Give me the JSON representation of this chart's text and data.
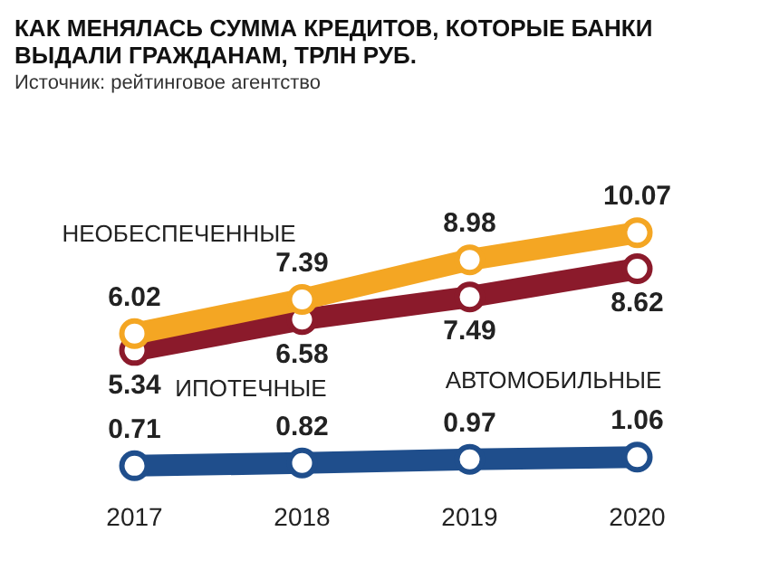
{
  "chart_data": {
    "type": "line",
    "title": "КАК МЕНЯЛАСЬ СУММА КРЕДИТОВ, КОТОРЫЕ БАНКИ ВЫДАЛИ ГРАЖДАНАМ, ТРЛН РУБ.",
    "annotations": [
      "Источник: рейтинговое агентство"
    ],
    "categories": [
      "2017",
      "2018",
      "2019",
      "2020"
    ],
    "series": [
      {
        "name": "НЕОБЕСПЕЧЕННЫЕ",
        "color": "#f4a623",
        "values": [
          6.02,
          7.39,
          8.98,
          10.07
        ]
      },
      {
        "name": "ИПОТЕЧНЫЕ",
        "color": "#8b1a2b",
        "values": [
          5.34,
          6.58,
          7.49,
          8.62
        ]
      },
      {
        "name": "АВТОМОБИЛЬНЫЕ",
        "color": "#1f4e8c",
        "values": [
          0.71,
          0.82,
          0.97,
          1.06
        ]
      }
    ],
    "data_labels": true,
    "legend": false,
    "marker": "circle"
  }
}
